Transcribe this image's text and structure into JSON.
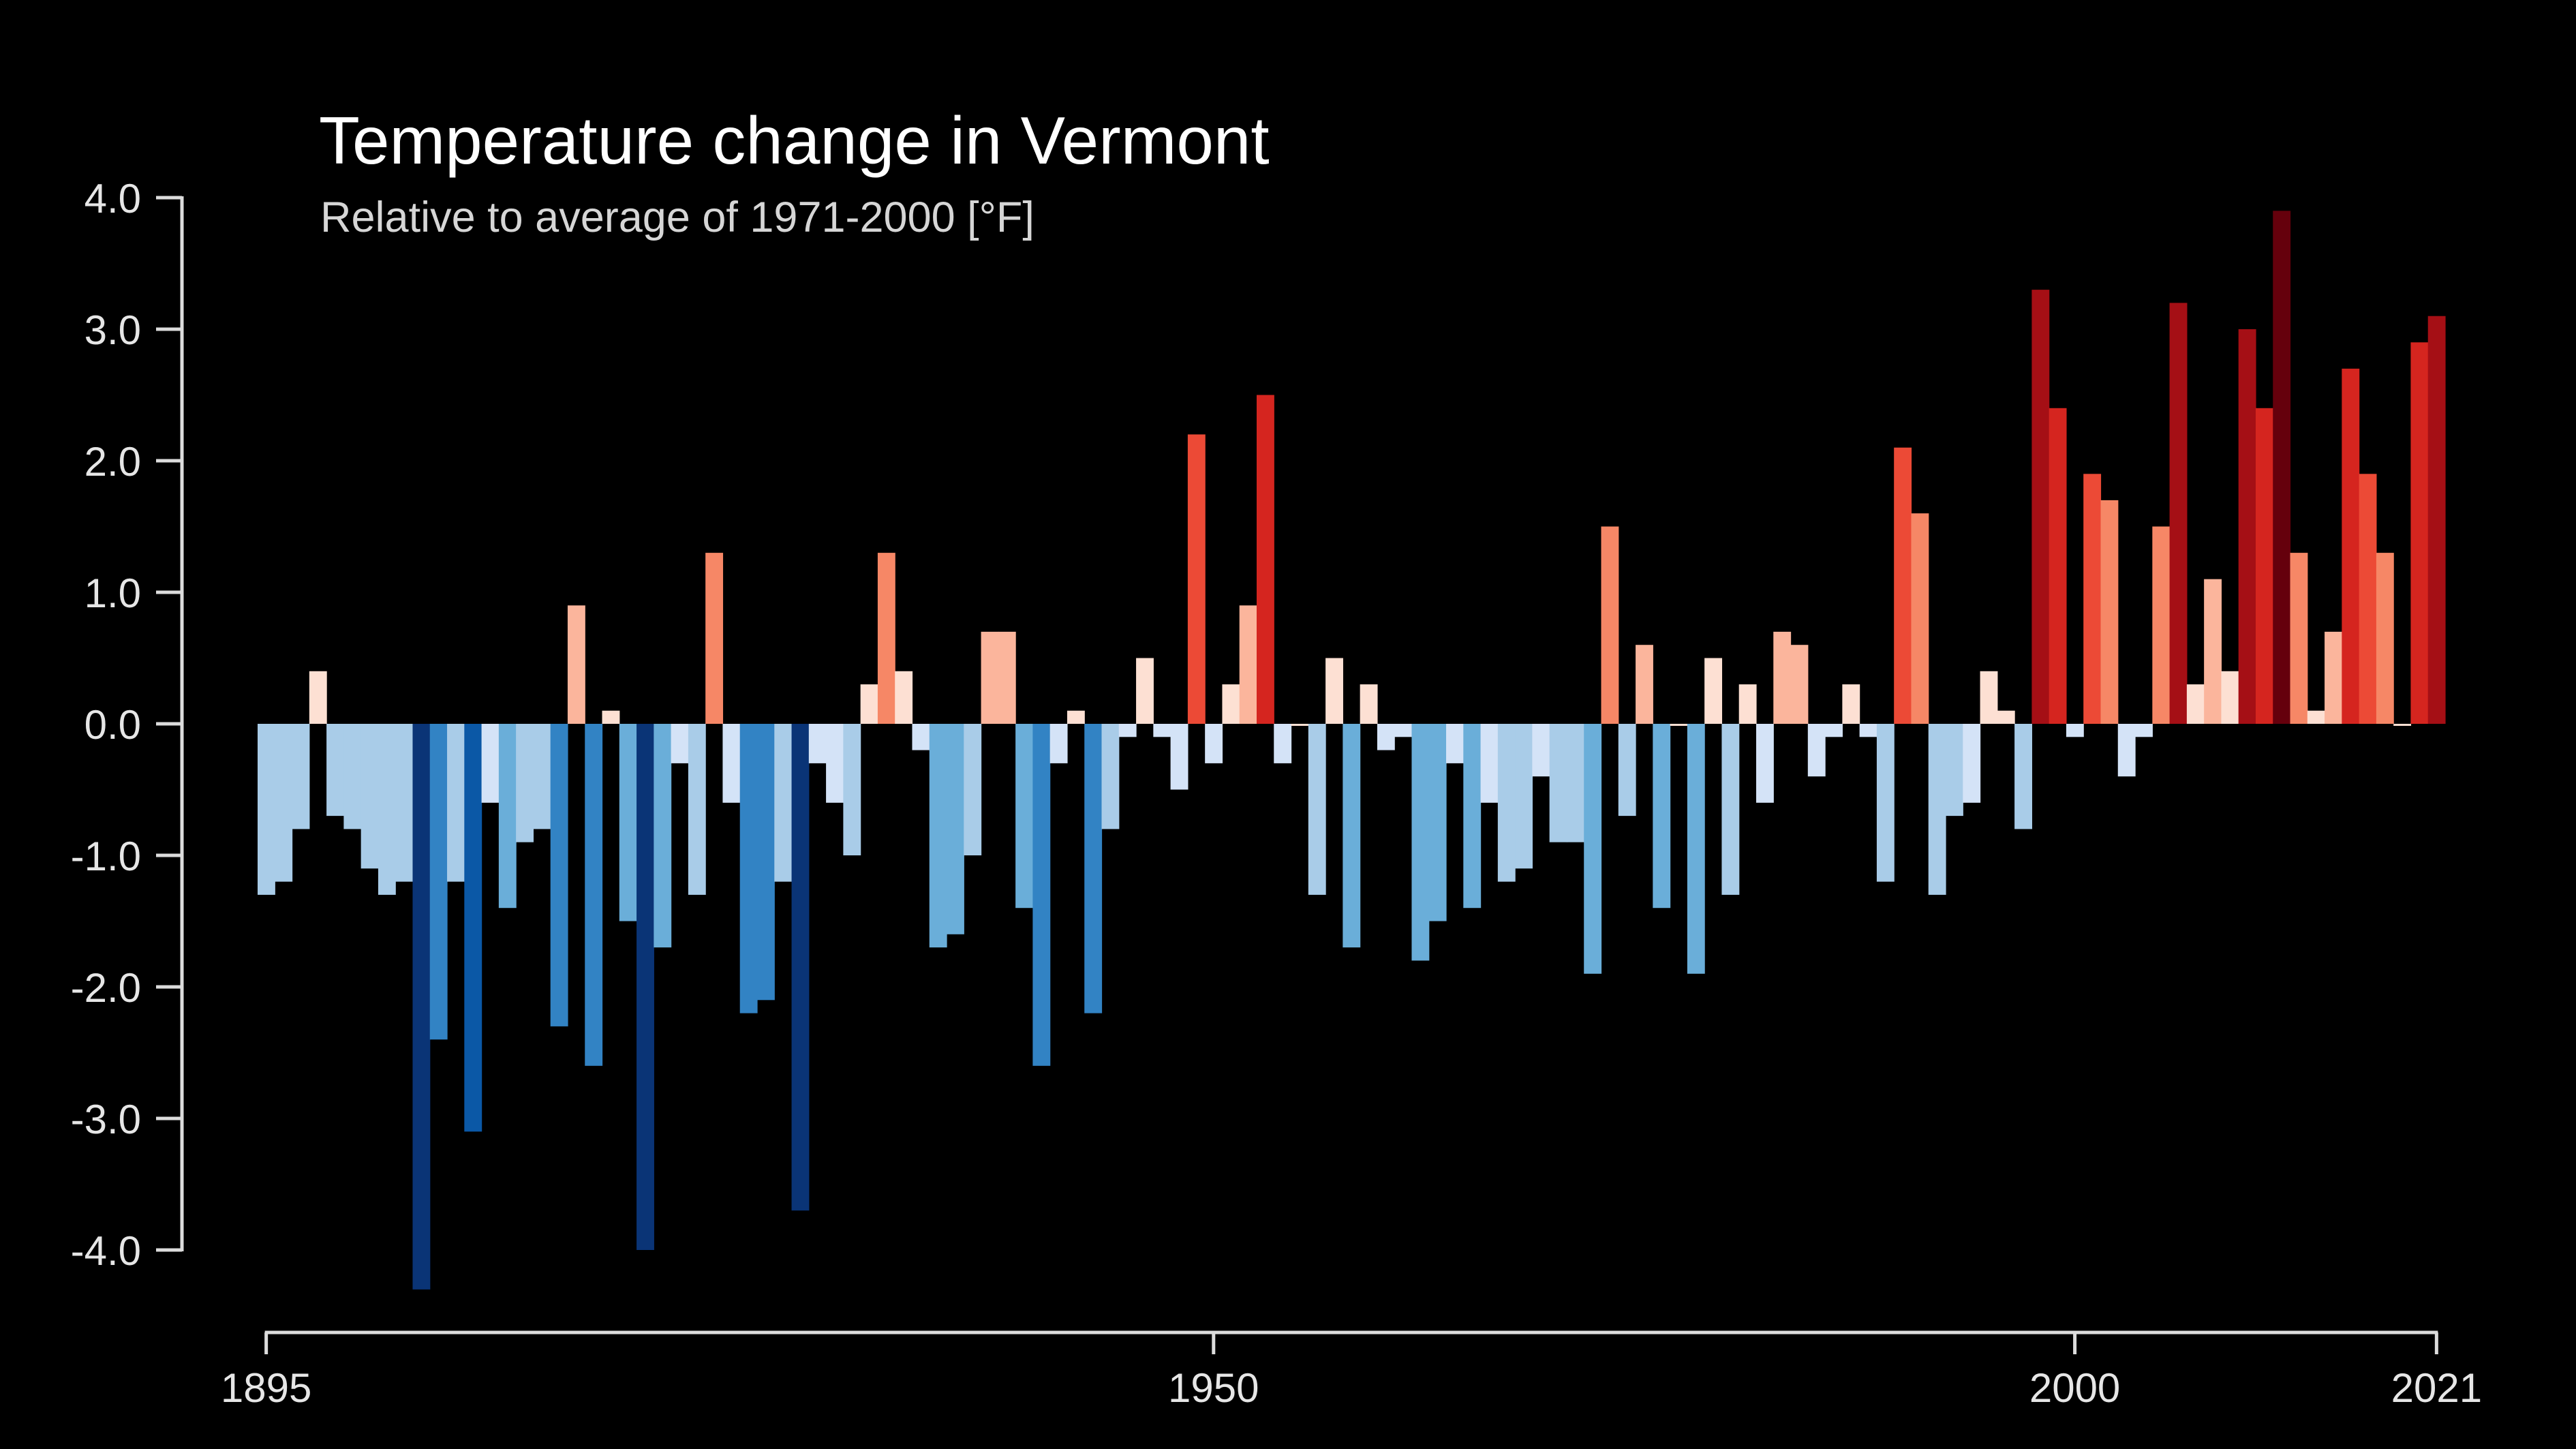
{
  "chart_data": {
    "type": "bar",
    "title": "Temperature change in Vermont",
    "subtitle": "Relative to average of 1971-2000  [°F]",
    "xlabel": "",
    "ylabel": "",
    "x_start": 1895,
    "x_end": 2021,
    "ylim": [
      -4.0,
      4.0
    ],
    "ytick_labels": [
      "4.0",
      "3.0",
      "2.0",
      "1.0",
      "0.0",
      "-1.0",
      "-2.0",
      "-3.0",
      "-4.0"
    ],
    "xtick_labels": [
      "1895",
      "1950",
      "2000",
      "2021"
    ],
    "grid": false,
    "legend": "none",
    "categories": [
      1895,
      1896,
      1897,
      1898,
      1899,
      1900,
      1901,
      1902,
      1903,
      1904,
      1905,
      1906,
      1907,
      1908,
      1909,
      1910,
      1911,
      1912,
      1913,
      1914,
      1915,
      1916,
      1917,
      1918,
      1919,
      1920,
      1921,
      1922,
      1923,
      1924,
      1925,
      1926,
      1927,
      1928,
      1929,
      1930,
      1931,
      1932,
      1933,
      1934,
      1935,
      1936,
      1937,
      1938,
      1939,
      1940,
      1941,
      1942,
      1943,
      1944,
      1945,
      1946,
      1947,
      1948,
      1949,
      1950,
      1951,
      1952,
      1953,
      1954,
      1955,
      1956,
      1957,
      1958,
      1959,
      1960,
      1961,
      1962,
      1963,
      1964,
      1965,
      1966,
      1967,
      1968,
      1969,
      1970,
      1971,
      1972,
      1973,
      1974,
      1975,
      1976,
      1977,
      1978,
      1979,
      1980,
      1981,
      1982,
      1983,
      1984,
      1985,
      1986,
      1987,
      1988,
      1989,
      1990,
      1991,
      1992,
      1993,
      1994,
      1995,
      1996,
      1997,
      1998,
      1999,
      2000,
      2001,
      2002,
      2003,
      2004,
      2005,
      2006,
      2007,
      2008,
      2009,
      2010,
      2011,
      2012,
      2013,
      2014,
      2015,
      2016,
      2017,
      2018,
      2019,
      2020,
      2021
    ],
    "values": [
      -1.3,
      -1.2,
      -0.8,
      0.4,
      -0.7,
      -0.8,
      -1.1,
      -1.3,
      -1.2,
      -4.3,
      -2.4,
      -1.2,
      -3.1,
      -0.6,
      -1.4,
      -0.9,
      -0.8,
      -2.3,
      0.9,
      -2.6,
      0.1,
      -1.5,
      -4.0,
      -1.7,
      -0.3,
      -1.3,
      1.3,
      -0.6,
      -2.2,
      -2.1,
      -1.2,
      -3.7,
      -0.3,
      -0.6,
      -1.0,
      0.3,
      1.3,
      0.4,
      -0.2,
      -1.7,
      -1.6,
      -1.0,
      0.7,
      0.7,
      -1.4,
      -2.6,
      -0.3,
      0.1,
      -2.2,
      -0.8,
      -0.1,
      0.5,
      -0.1,
      -0.5,
      2.2,
      -0.3,
      0.3,
      0.9,
      2.5,
      -0.3,
      0.0,
      -1.3,
      0.5,
      -1.7,
      0.3,
      -0.2,
      -0.1,
      -1.8,
      -1.5,
      -0.3,
      -1.4,
      -0.6,
      -1.2,
      -1.1,
      -0.4,
      -0.9,
      -0.9,
      -1.9,
      1.5,
      -0.7,
      0.6,
      -1.4,
      0.0,
      -1.9,
      0.5,
      -1.3,
      0.3,
      -0.6,
      0.7,
      0.6,
      -0.4,
      -0.1,
      0.3,
      -0.1,
      -1.2,
      2.1,
      1.6,
      -1.3,
      -0.7,
      -0.6,
      0.4,
      0.1,
      -0.8,
      3.3,
      2.4,
      -0.1,
      1.9,
      1.7,
      -0.4,
      -0.1,
      1.5,
      3.2,
      0.3,
      1.1,
      0.4,
      3.0,
      2.4,
      3.9,
      1.3,
      0.1,
      0.7,
      2.7,
      1.9,
      1.3,
      0.0,
      2.9,
      3.1
    ],
    "colors": {
      "blue_scale": [
        "#d4e3f7",
        "#a9cce8",
        "#6aaed9",
        "#3283c4",
        "#0b58a6",
        "#0a3476"
      ],
      "red_scale": [
        "#fde0d3",
        "#fbb59c",
        "#f68766",
        "#ec4a36",
        "#d5251f",
        "#a50f15",
        "#65000c"
      ]
    }
  }
}
